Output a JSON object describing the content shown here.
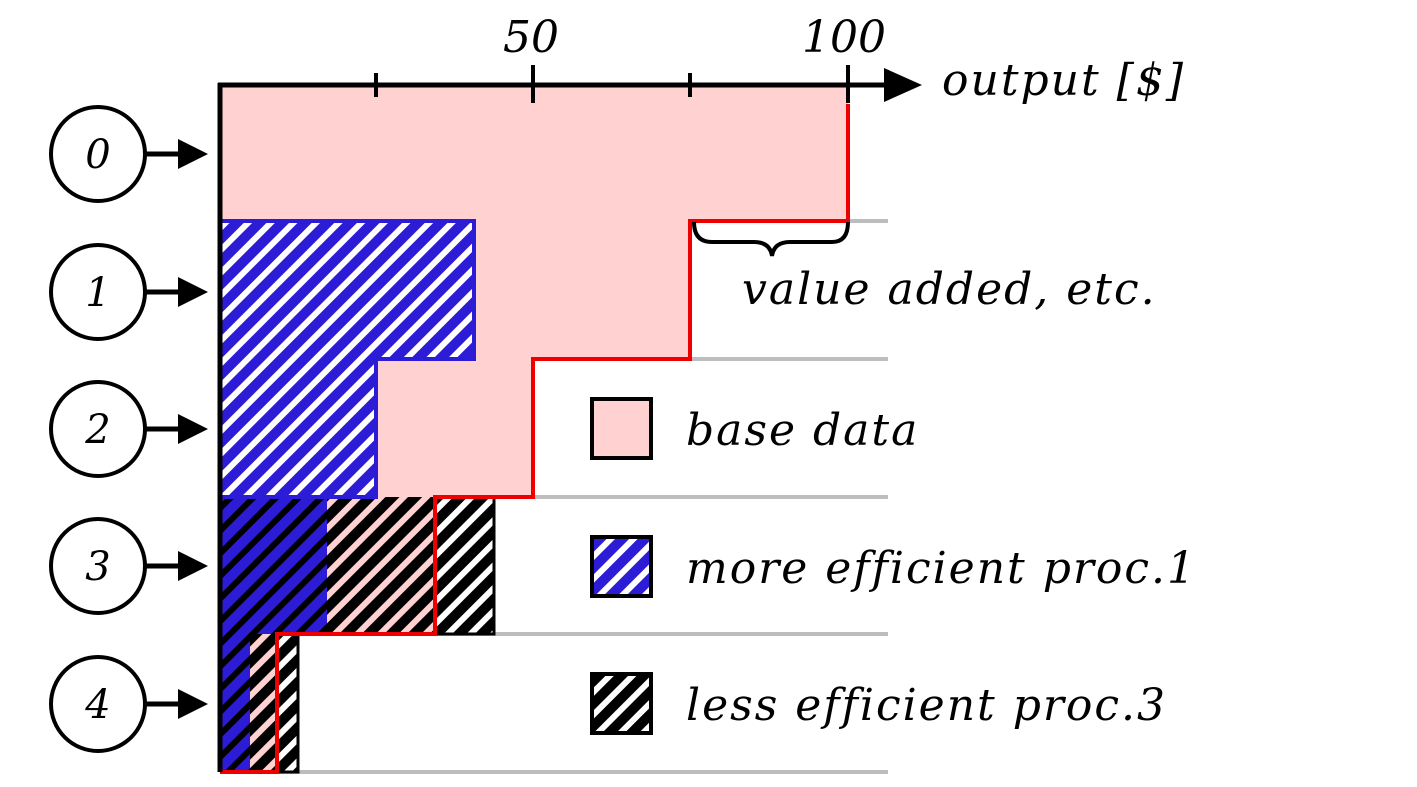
{
  "axis": {
    "label": "output [$]",
    "tick_labels": [
      "50",
      "100"
    ]
  },
  "stages": [
    {
      "label": "0"
    },
    {
      "label": "1"
    },
    {
      "label": "2"
    },
    {
      "label": "3"
    },
    {
      "label": "4"
    }
  ],
  "annotation": "value added, etc.",
  "legend": [
    {
      "label": "base data",
      "kind": "base"
    },
    {
      "label": "more efficient proc.1",
      "kind": "blue-hatch"
    },
    {
      "label": "less efficient proc.3",
      "kind": "black-hatch"
    }
  ],
  "colors": {
    "base_fill": "#ffd1d1",
    "outline_red": "#ee0000",
    "hatch_blue": "#2d1cd6",
    "hatch_black": "#000000",
    "separator": "#bdbdbd"
  }
}
